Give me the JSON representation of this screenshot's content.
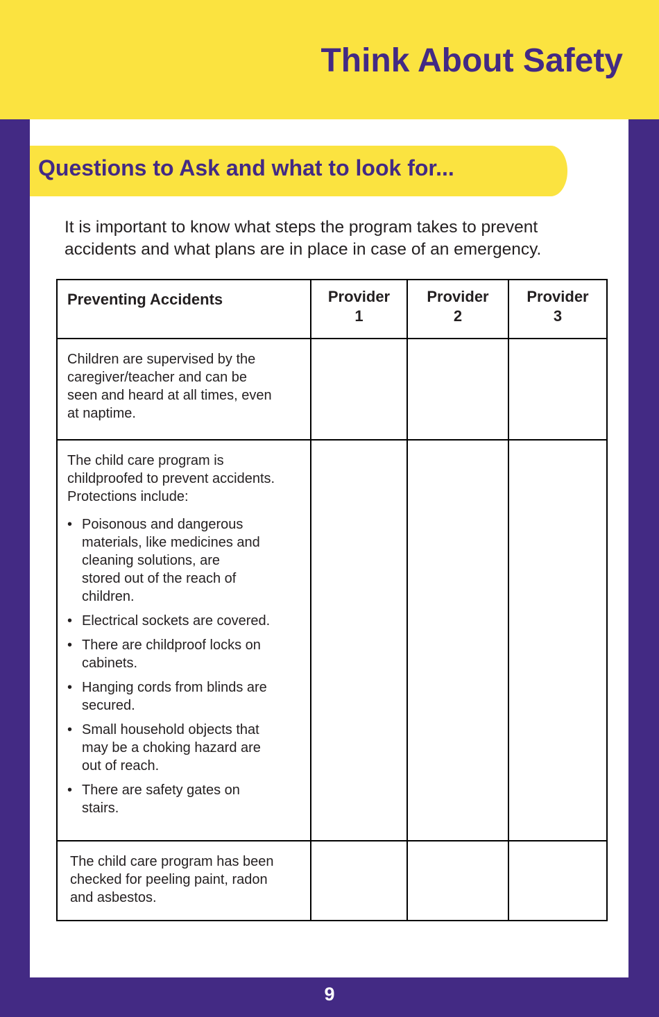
{
  "header": {
    "title": "Think About Safety"
  },
  "section": {
    "title": "Questions to Ask and what to look for...",
    "intro": "It is important to know what steps the program takes to prevent accidents and what plans are in place in case of an emergency."
  },
  "table": {
    "headers": [
      "Preventing Accidents",
      "Provider 1",
      "Provider 2",
      "Provider 3"
    ],
    "rows": [
      {
        "text": "Children are supervised by the caregiver/teacher and can be seen and heard at all times, even at naptime."
      },
      {
        "text": "The child care program is childproofed to prevent accidents. Protections include:",
        "bullets": [
          "Poisonous and dangerous materials, like medicines and cleaning solutions, are stored out of the reach of children.",
          "Electrical sockets are covered.",
          "There are childproof locks on cabinets.",
          "Hanging cords from blinds are secured.",
          "Small household objects that may be a choking hazard are out of reach.",
          "There are safety gates on stairs."
        ]
      },
      {
        "text": "The child care program has been checked for peeling paint, radon and asbestos."
      }
    ]
  },
  "footer": {
    "page_number": "9"
  },
  "colors": {
    "yellow": "#fbe340",
    "purple": "#432a84"
  }
}
